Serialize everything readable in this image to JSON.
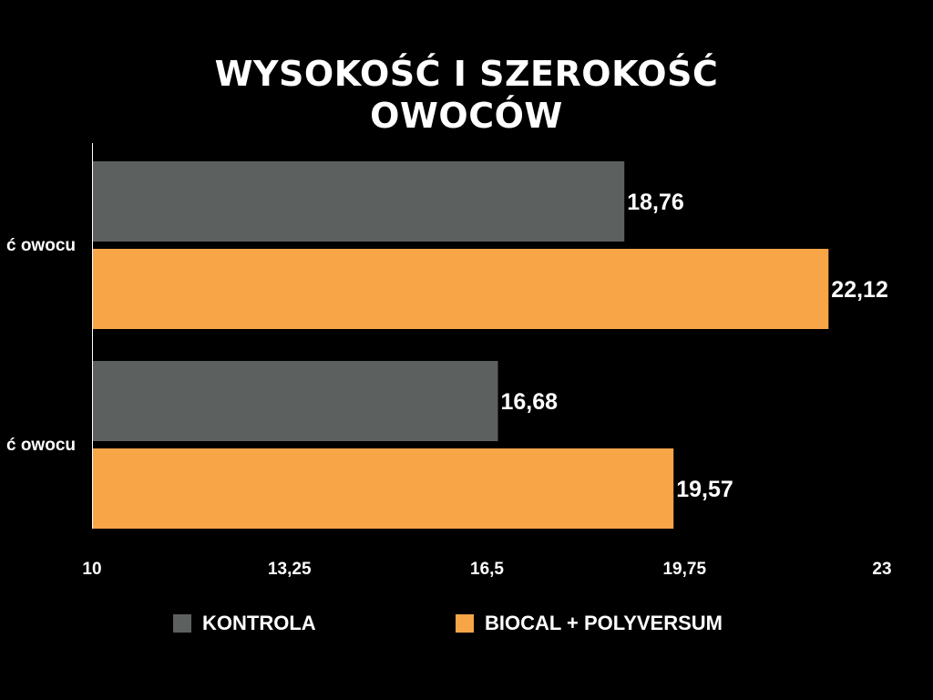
{
  "title": {
    "line1": "WYSOKOŚĆ I SZEROKOŚĆ",
    "line2": "OWOCÓW"
  },
  "colors": {
    "background": "#000000",
    "kontrola": "#5c605e",
    "biocal": "#f7a547",
    "text": "#ffffff"
  },
  "legend": {
    "kontrola_label": "KONTROLA",
    "biocal_label": "BIOCAL + POLYVERSUM"
  },
  "chart_data": {
    "type": "bar",
    "orientation": "horizontal",
    "categories": [
      "ć owocu",
      "ć owocu"
    ],
    "series": [
      {
        "name": "KONTROLA",
        "values": [
          18.76,
          16.68
        ],
        "labels": [
          "18,76",
          "16,68"
        ],
        "color": "#5c605e"
      },
      {
        "name": "BIOCAL + POLYVERSUM",
        "values": [
          22.12,
          19.57
        ],
        "labels": [
          "22,12",
          "19,57"
        ],
        "color": "#f7a547"
      }
    ],
    "xlim": [
      10,
      23
    ],
    "xticks": [
      10,
      13.25,
      16.5,
      19.75,
      23
    ],
    "xtick_labels": [
      "10",
      "13,25",
      "16,5",
      "19,75",
      "23"
    ],
    "grid": false,
    "legend_position": "bottom"
  }
}
